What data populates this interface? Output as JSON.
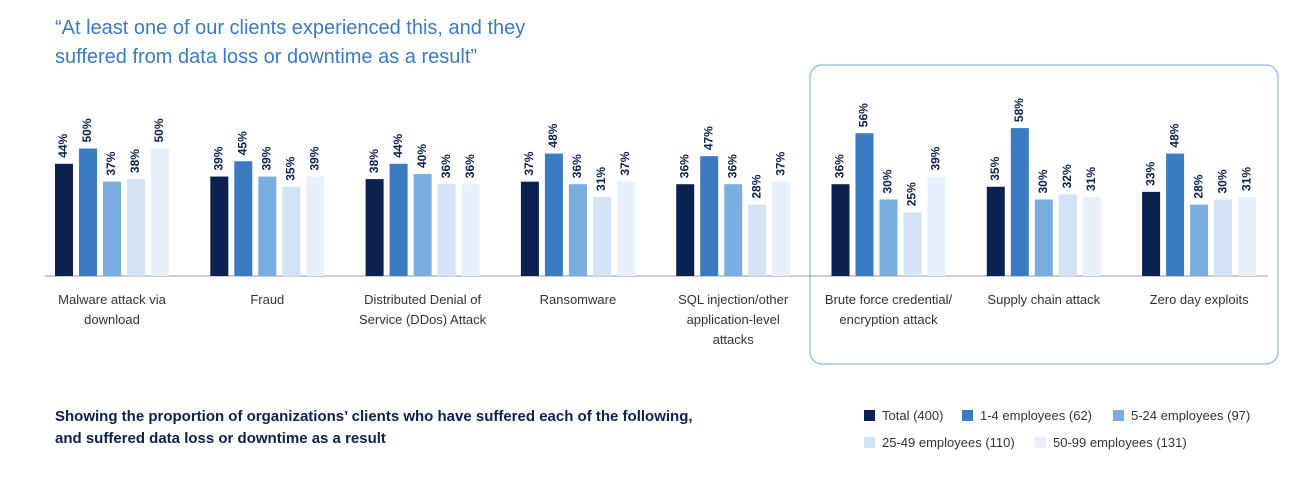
{
  "chart_data": {
    "type": "bar",
    "title": "“At least one of our clients experienced this, and they suffered from data loss or downtime as a result”",
    "subtitle": "Showing the proportion of organizations’ clients who have suffered each of the following, and suffered data loss or downtime as a result",
    "categories": [
      "Malware attack via download",
      "Fraud",
      "Distributed Denial of Service (DDos) Attack",
      "Ransomware",
      "SQL injection/other application-level attacks",
      "Brute force credential/ encryption attack",
      "Supply chain attack",
      "Zero day exploits"
    ],
    "series": [
      {
        "name": "Total (400)",
        "color": "#0b2150",
        "values": [
          44,
          39,
          38,
          37,
          36,
          36,
          35,
          33
        ],
        "value_labels": [
          "44%",
          "39%",
          "38%",
          "37%",
          "36%",
          "36%",
          "35%",
          "33%"
        ]
      },
      {
        "name": "1-4 employees (62)",
        "color": "#3a7bc2",
        "values": [
          50,
          45,
          44,
          48,
          47,
          56,
          58,
          48
        ],
        "value_labels": [
          "50%",
          "45%",
          "44%",
          "48%",
          "47%",
          "56%",
          "58%",
          "48%"
        ]
      },
      {
        "name": "5-24 employees (97)",
        "color": "#7aaee0",
        "values": [
          37,
          39,
          40,
          36,
          36,
          30,
          30,
          28
        ],
        "value_labels": [
          "37%",
          "39%",
          "40%",
          "36%",
          "36%",
          "30%",
          "30%",
          "28%"
        ]
      },
      {
        "name": "25-49 employees (110)",
        "color": "#d3e3f6",
        "values": [
          38,
          35,
          36,
          31,
          28,
          25,
          32,
          30
        ],
        "value_labels": [
          "38%",
          "35%",
          "36%",
          "31%",
          "28%",
          "25%",
          "32%",
          "30%"
        ]
      },
      {
        "name": "50-99 employees (131)",
        "color": "#e8f1fb",
        "values": [
          50,
          39,
          36,
          37,
          37,
          39,
          31,
          31
        ],
        "value_labels": [
          "50%",
          "39%",
          "36%",
          "37%",
          "37%",
          "39%",
          "31%",
          "31%"
        ]
      }
    ],
    "legend": "bottom-right"
  }
}
